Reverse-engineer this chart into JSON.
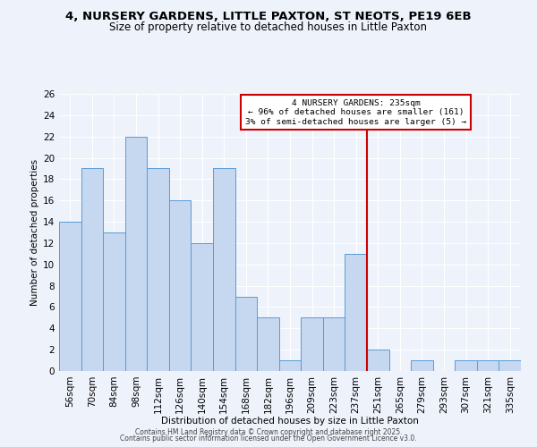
{
  "title1": "4, NURSERY GARDENS, LITTLE PAXTON, ST NEOTS, PE19 6EB",
  "title2": "Size of property relative to detached houses in Little Paxton",
  "xlabel": "Distribution of detached houses by size in Little Paxton",
  "ylabel": "Number of detached properties",
  "categories": [
    "56sqm",
    "70sqm",
    "84sqm",
    "98sqm",
    "112sqm",
    "126sqm",
    "140sqm",
    "154sqm",
    "168sqm",
    "182sqm",
    "196sqm",
    "209sqm",
    "223sqm",
    "237sqm",
    "251sqm",
    "265sqm",
    "279sqm",
    "293sqm",
    "307sqm",
    "321sqm",
    "335sqm"
  ],
  "values": [
    14,
    19,
    13,
    22,
    19,
    16,
    12,
    19,
    7,
    5,
    1,
    5,
    5,
    11,
    2,
    0,
    1,
    0,
    1,
    1,
    1
  ],
  "bar_color": "#c5d8f0",
  "bar_edge_color": "#5b9bd5",
  "vline_color": "#cc0000",
  "vline_x": 13.5,
  "annotation_title": "4 NURSERY GARDENS: 235sqm",
  "annotation_line2": "← 96% of detached houses are smaller (161)",
  "annotation_line3": "3% of semi-detached houses are larger (5) →",
  "annotation_box_color": "#cc0000",
  "ylim": [
    0,
    26
  ],
  "yticks": [
    0,
    2,
    4,
    6,
    8,
    10,
    12,
    14,
    16,
    18,
    20,
    22,
    24,
    26
  ],
  "footer1": "Contains HM Land Registry data © Crown copyright and database right 2025.",
  "footer2": "Contains public sector information licensed under the Open Government Licence v3.0.",
  "bg_color": "#eef2fb",
  "grid_color": "#ffffff",
  "title_fontsize": 9.5,
  "subtitle_fontsize": 8.5,
  "axis_fontsize": 7.5,
  "tick_fontsize": 7.5,
  "footer_fontsize": 5.5
}
